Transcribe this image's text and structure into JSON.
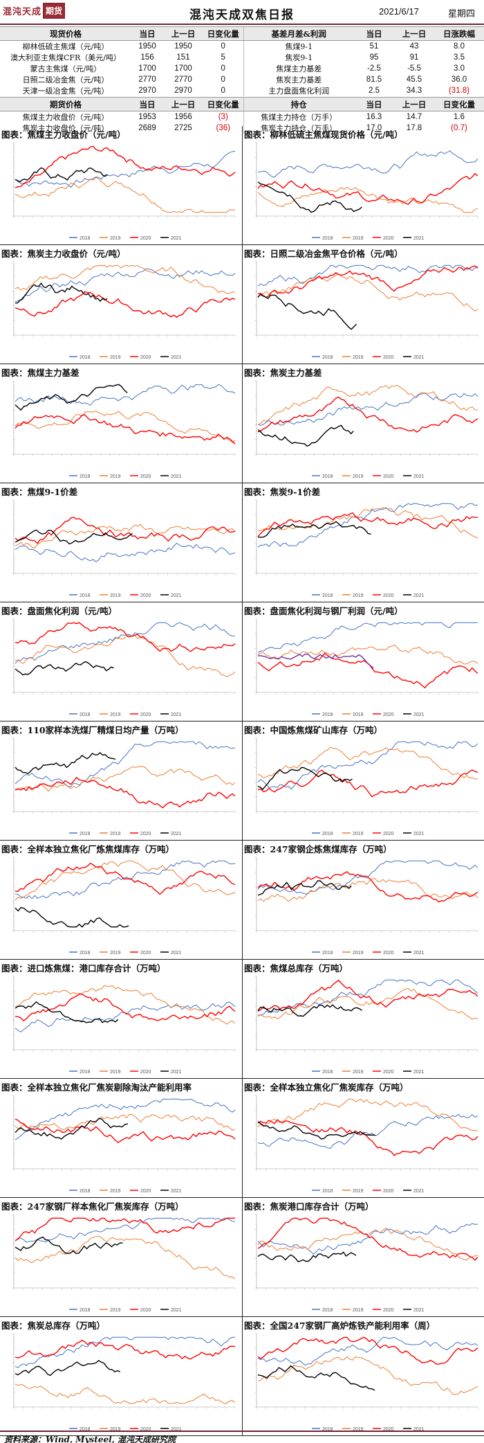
{
  "header": {
    "logo_text": "混沌天成",
    "logo_sub": "期货",
    "title": "混沌天成双焦日报",
    "date": "2021/6/17",
    "weekday": "星期四"
  },
  "table1": {
    "headers": [
      "现货价格",
      "当日",
      "上一日",
      "日变化量",
      "基差月差&利润",
      "当日",
      "上一日",
      "日涨跌幅"
    ],
    "rows": [
      [
        "柳林低硫主焦煤（元/吨）",
        "1950",
        "1950",
        "0",
        "焦煤9-1",
        "51",
        "43",
        "8.0"
      ],
      [
        "澳大利亚主焦煤CFR（美元/吨）",
        "156",
        "151",
        "5",
        "焦炭9-1",
        "95",
        "91",
        "3.5"
      ],
      [
        "蒙古主焦煤（元/吨）",
        "1700",
        "1700",
        "0",
        "焦煤主力基差",
        "-2.5",
        "-5.5",
        "3.0"
      ],
      [
        "日照二级冶金焦（元/吨）",
        "2770",
        "2770",
        "0",
        "焦炭主力基差",
        "81.5",
        "45.5",
        "36.0"
      ],
      [
        "天津一级冶金焦（元/吨）",
        "2970",
        "2970",
        "0",
        "主力盘面焦化利润",
        "2.5",
        "34.3",
        "(31.8)"
      ]
    ]
  },
  "table2": {
    "headers": [
      "期货价格",
      "当日",
      "上一日",
      "日变化量",
      "持仓",
      "当日",
      "上一日",
      "日变化量"
    ],
    "rows": [
      [
        "焦煤主力收盘价（元/吨）",
        "1953",
        "1956",
        "(3)",
        "焦煤主力持仓（万手）",
        "16.3",
        "14.7",
        "1.6"
      ],
      [
        "焦炭主力收盘价（元/吨）",
        "2689",
        "2725",
        "(36)",
        "焦炭主力持仓（万手）",
        "17.0",
        "17.8",
        "(0.7)"
      ]
    ]
  },
  "colors": {
    "s2018": "#4472c4",
    "s2019": "#ed7d31",
    "s2020": "#ff0000",
    "s2021": "#000000",
    "purple": "#7030a0",
    "accent": "#6e2433"
  },
  "legend": [
    "2018",
    "2019",
    "2020",
    "2021"
  ],
  "charts": [
    {
      "title": "图表：焦煤主力收盘价（元/吨）"
    },
    {
      "title": "图表：柳林低硫主焦煤现货价格（元/吨）"
    },
    {
      "title": "图表：焦炭主力收盘价（元/吨）"
    },
    {
      "title": "图表：日照二级冶金焦平仓价格（元/吨）"
    },
    {
      "title": "图表：焦煤主力基差"
    },
    {
      "title": "图表：焦炭主力基差"
    },
    {
      "title": "图表：焦煤9-1价差"
    },
    {
      "title": "图表：焦炭9-1价差"
    },
    {
      "title": "图表：盘面焦化利润（元/吨）"
    },
    {
      "title": "图表：盘面焦化利润与钢厂利润（元/吨）"
    },
    {
      "title": "图表：110家样本洗煤厂精煤日均产量（万吨）"
    },
    {
      "title": "图表：中国炼焦煤矿山库存（万吨）"
    },
    {
      "title": "图表：全样本独立焦化厂炼焦煤库存（万吨）"
    },
    {
      "title": "图表：247家钢企炼焦煤库存（万吨）"
    },
    {
      "title": "图表：进口炼焦煤：港口库存合计（万吨）"
    },
    {
      "title": "图表：焦煤总库存（万吨）"
    },
    {
      "title": "图表：全样本独立焦化厂焦炭剔除淘汰产能利用率"
    },
    {
      "title": "图表：全样本独立焦化厂焦炭库存（万吨）"
    },
    {
      "title": "图表：247家钢厂样本焦化厂焦炭库存（万吨）"
    },
    {
      "title": "图表：焦炭港口库存合计（万吨）"
    },
    {
      "title": "图表：焦炭总库存（万吨）"
    },
    {
      "title": "图表：全国247家钢厂高炉炼铁产能利用率（周）"
    }
  ],
  "footer": "资料来源：Wind, Mysteel, 混沌天成研究院"
}
